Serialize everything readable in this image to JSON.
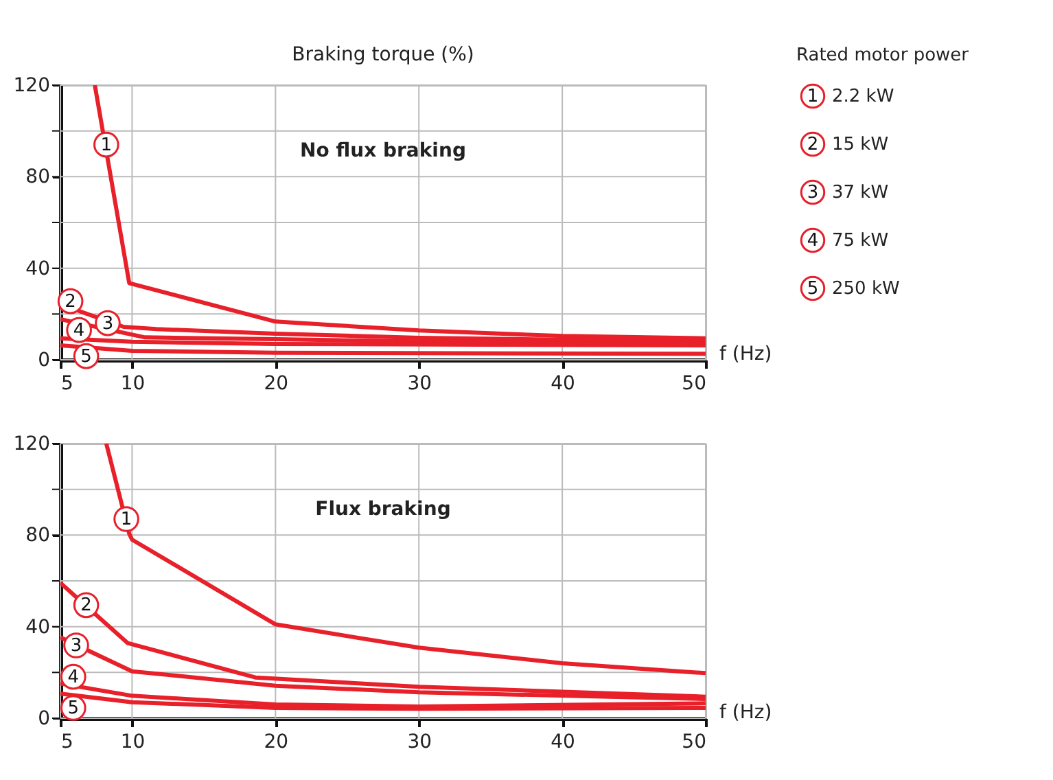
{
  "chart_data": [
    {
      "type": "line",
      "ylabel": "Braking torque (%)",
      "xlabel": "f (Hz)",
      "legend_title": "Rated motor power",
      "legend": "right",
      "grid": true,
      "xlim": [
        5,
        50
      ],
      "xticks": [
        5,
        10,
        20,
        30,
        40,
        50
      ],
      "ylim": [
        0,
        120
      ],
      "yticks": [
        0,
        {
          "value": 20,
          "label": null
        },
        40,
        {
          "value": 60,
          "label": null
        },
        80,
        {
          "value": 100,
          "label": null
        },
        120
      ],
      "annotations": [
        "No flux braking",
        {
          "text": "1",
          "x": 8.2,
          "y": 94
        },
        {
          "text": "2",
          "x": 5.7,
          "y": 25.6
        },
        {
          "text": "3",
          "x": 8.3,
          "y": 16
        },
        {
          "text": "4",
          "x": 6.3,
          "y": 13
        },
        {
          "text": "5",
          "x": 6.8,
          "y": 1.6
        }
      ],
      "series": [
        {
          "name": "2.2 kW",
          "color": "#e8202a",
          "x": [
            7.4,
            9.8,
            20,
            30,
            40,
            50
          ],
          "values": [
            120,
            33.5,
            16.7,
            12.8,
            10.4,
            9.4
          ]
        },
        {
          "name": "15 kW",
          "color": "#e8202a",
          "x": [
            5,
            9.4,
            11.7,
            20,
            30,
            50
          ],
          "values": [
            24.2,
            14.4,
            13.4,
            11.4,
            9.6,
            8
          ]
        },
        {
          "name": "37 kW",
          "color": "#e8202a",
          "x": [
            5,
            10.9,
            20,
            30,
            50
          ],
          "values": [
            17.7,
            9.8,
            9,
            8,
            7
          ]
        },
        {
          "name": "75 kW",
          "color": "#e8202a",
          "x": [
            5,
            10,
            20,
            50
          ],
          "values": [
            9.4,
            7.9,
            6.9,
            6.3
          ]
        },
        {
          "name": "250 kW",
          "color": "#e8202a",
          "x": [
            5,
            10,
            20,
            50
          ],
          "values": [
            6.3,
            3.9,
            3.1,
            2.6
          ]
        }
      ]
    },
    {
      "type": "line",
      "xlabel": "f (Hz)",
      "legend": false,
      "grid": true,
      "xlim": [
        5,
        50
      ],
      "xticks": [
        5,
        10,
        20,
        30,
        40,
        50
      ],
      "ylim": [
        0,
        120
      ],
      "yticks": [
        0,
        {
          "value": 20,
          "label": null
        },
        40,
        {
          "value": 60,
          "label": null
        },
        80,
        {
          "value": 100,
          "label": null
        },
        120
      ],
      "annotations": [
        "Flux braking",
        {
          "text": "1",
          "x": 9.6,
          "y": 87
        },
        {
          "text": "2",
          "x": 6.8,
          "y": 49.4
        },
        {
          "text": "3",
          "x": 6.1,
          "y": 31.8
        },
        {
          "text": "4",
          "x": 5.9,
          "y": 18.1
        },
        {
          "text": "5",
          "x": 5.9,
          "y": 4.5
        }
      ],
      "series": [
        {
          "color": "#e8202a",
          "x": [
            8.2,
            9.8,
            10,
            20,
            30,
            40,
            50
          ],
          "values": [
            120,
            80.6,
            78,
            41,
            30.8,
            24,
            19.7
          ]
        },
        {
          "color": "#e8202a",
          "x": [
            5,
            9.7,
            18.6,
            30,
            50
          ],
          "values": [
            59.1,
            32.8,
            17.8,
            13.7,
            9.4
          ]
        },
        {
          "color": "#e8202a",
          "x": [
            5,
            10,
            20,
            30,
            50
          ],
          "values": [
            35.3,
            20.5,
            14.2,
            11.3,
            8.4
          ]
        },
        {
          "color": "#e8202a",
          "x": [
            5,
            10,
            20,
            30,
            50
          ],
          "values": [
            15.2,
            9.8,
            6,
            5.1,
            6.5
          ]
        },
        {
          "color": "#e8202a",
          "x": [
            5,
            10,
            20,
            30,
            50
          ],
          "values": [
            10.7,
            7,
            4.5,
            4.1,
            4.5
          ]
        }
      ]
    }
  ]
}
